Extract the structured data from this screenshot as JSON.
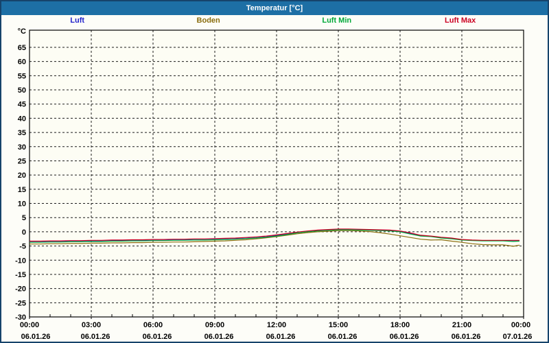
{
  "window": {
    "title": "Temperatur [°C]"
  },
  "legend": {
    "items": [
      {
        "label": "Luft",
        "color": "#2222cc"
      },
      {
        "label": "Boden",
        "color": "#8a6d0e"
      },
      {
        "label": "Luft Min",
        "color": "#00a838"
      },
      {
        "label": "Luft Max",
        "color": "#cc0022"
      }
    ]
  },
  "chart_data": {
    "type": "line",
    "title": "Temperatur [°C]",
    "ylabel": "°C",
    "ylim": [
      -30,
      65
    ],
    "y_tick_step": 5,
    "grid": true,
    "legend_position": "top",
    "x_axis_ticks": [
      {
        "time": "00:00",
        "date": "06.01.26"
      },
      {
        "time": "03:00",
        "date": "06.01.26"
      },
      {
        "time": "06:00",
        "date": "06.01.26"
      },
      {
        "time": "09:00",
        "date": "06.01.26"
      },
      {
        "time": "12:00",
        "date": "06.01.26"
      },
      {
        "time": "15:00",
        "date": "06.01.26"
      },
      {
        "time": "18:00",
        "date": "06.01.26"
      },
      {
        "time": "21:00",
        "date": "06.01.26"
      },
      {
        "time": "00:00",
        "date": "07.01.26"
      }
    ],
    "x_hours": [
      0,
      0.5,
      1,
      1.5,
      2,
      2.5,
      3,
      3.5,
      4,
      4.5,
      5,
      5.5,
      6,
      6.5,
      7,
      7.5,
      8,
      8.5,
      9,
      9.5,
      10,
      10.5,
      11,
      11.5,
      12,
      12.5,
      13,
      13.5,
      14,
      14.5,
      15,
      15.5,
      16,
      16.5,
      17,
      17.5,
      18,
      18.5,
      19,
      19.5,
      20,
      20.5,
      21,
      21.5,
      22,
      22.5,
      23,
      23.5,
      23.8
    ],
    "series": [
      {
        "name": "Boden",
        "color": "#8a6d0e",
        "values": [
          -4.3,
          -4.3,
          -4.2,
          -4.2,
          -4.1,
          -4.1,
          -4.0,
          -4.0,
          -3.9,
          -3.9,
          -3.8,
          -3.8,
          -3.7,
          -3.7,
          -3.6,
          -3.6,
          -3.5,
          -3.4,
          -3.3,
          -3.2,
          -3.0,
          -2.8,
          -2.5,
          -2.1,
          -1.7,
          -1.2,
          -0.7,
          -0.3,
          0.0,
          0.2,
          0.4,
          0.4,
          0.3,
          0.1,
          -0.3,
          -0.8,
          -1.4,
          -2.0,
          -2.6,
          -2.9,
          -2.8,
          -3.3,
          -3.7,
          -4.2,
          -4.5,
          -4.6,
          -4.6,
          -5.1,
          -4.7
        ]
      },
      {
        "name": "Luft",
        "color": "#2222cc",
        "values": [
          -3.6,
          -3.6,
          -3.5,
          -3.5,
          -3.4,
          -3.4,
          -3.3,
          -3.3,
          -3.2,
          -3.2,
          -3.1,
          -3.1,
          -3.0,
          -3.0,
          -2.9,
          -2.9,
          -2.8,
          -2.8,
          -2.7,
          -2.6,
          -2.5,
          -2.3,
          -2.1,
          -1.8,
          -1.3,
          -0.8,
          -0.3,
          0.1,
          0.4,
          0.6,
          0.8,
          0.8,
          0.7,
          0.6,
          0.5,
          0.4,
          0.1,
          -0.6,
          -1.4,
          -1.6,
          -2.1,
          -2.4,
          -2.8,
          -3.0,
          -3.1,
          -3.1,
          -3.1,
          -3.1,
          -3.1
        ]
      },
      {
        "name": "Luft Min",
        "color": "#00a838",
        "values": [
          -3.7,
          -3.7,
          -3.6,
          -3.6,
          -3.5,
          -3.5,
          -3.4,
          -3.4,
          -3.3,
          -3.3,
          -3.2,
          -3.2,
          -3.1,
          -3.1,
          -3.0,
          -3.0,
          -2.9,
          -2.9,
          -2.8,
          -2.7,
          -2.6,
          -2.4,
          -2.2,
          -1.9,
          -1.5,
          -1.0,
          -0.4,
          0.0,
          0.3,
          0.5,
          0.7,
          0.7,
          0.6,
          0.5,
          0.4,
          0.3,
          0.0,
          -0.8,
          -1.5,
          -1.7,
          -2.2,
          -2.5,
          -2.9,
          -3.1,
          -3.2,
          -3.2,
          -3.2,
          -3.4,
          -3.3
        ]
      },
      {
        "name": "Luft Max",
        "color": "#cc0022",
        "values": [
          -3.3,
          -3.3,
          -3.2,
          -3.2,
          -3.1,
          -3.1,
          -3.0,
          -3.0,
          -2.9,
          -2.9,
          -2.8,
          -2.8,
          -2.7,
          -2.7,
          -2.6,
          -2.6,
          -2.5,
          -2.5,
          -2.4,
          -2.3,
          -2.2,
          -2.0,
          -1.8,
          -1.5,
          -1.1,
          -0.6,
          -0.1,
          0.3,
          0.6,
          0.8,
          1.0,
          1.0,
          0.9,
          0.8,
          0.7,
          0.6,
          0.3,
          -0.4,
          -1.2,
          -1.5,
          -1.9,
          -2.2,
          -2.7,
          -2.9,
          -3.0,
          -3.0,
          -3.0,
          -3.0,
          -3.0
        ]
      }
    ]
  }
}
